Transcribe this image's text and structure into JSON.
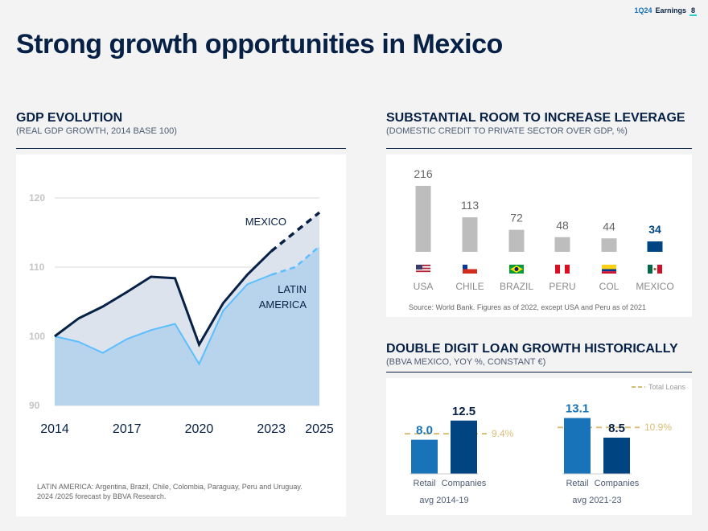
{
  "header": {
    "brand_period": "1Q24",
    "brand_label": "Earnings",
    "page_number": "8"
  },
  "title": "Strong growth opportunities in Mexico",
  "sections": {
    "gdp": {
      "title": "GDP EVOLUTION",
      "subtitle": "(REAL GDP GROWTH, 2014 BASE 100)",
      "footnote_1": "LATIN AMERICA: Argentina, Brazil, Chile, Colombia, Paraguay, Peru and Uruguay.",
      "footnote_2": "2024 /2025 forecast by BBVA Research."
    },
    "leverage": {
      "title": "SUBSTANTIAL ROOM TO INCREASE LEVERAGE",
      "subtitle": "(DOMESTIC CREDIT TO PRIVATE SECTOR OVER GDP, %)",
      "source": "Source: World Bank. Figures as of 2022, except USA and Peru as of 2021"
    },
    "loans": {
      "title": "DOUBLE DIGIT LOAN GROWTH HISTORICALLY",
      "subtitle": "(BBVA MEXICO, YOY %, CONSTANT €)"
    }
  },
  "colors": {
    "navy": "#072146",
    "dark_blue": "#004481",
    "mid_blue": "#1973b8",
    "light_blue": "#5bbeff",
    "area_blue": "#b8d4ed",
    "area_gray": "#dce3ec",
    "gray_bar": "#bdbdbd",
    "gold": "#d8be75",
    "grid": "#d9d9d9"
  },
  "chart_data": [
    {
      "type": "line",
      "id": "gdp",
      "x": [
        2014,
        2015,
        2016,
        2017,
        2018,
        2019,
        2020,
        2021,
        2022,
        2023,
        2024,
        2025
      ],
      "x_tick_labels": [
        "2014",
        "2017",
        "2020",
        "2023",
        "2025"
      ],
      "x_tick_values": [
        2014,
        2017,
        2020,
        2023,
        2025
      ],
      "y_ticks": [
        "90",
        "100",
        "110",
        "120"
      ],
      "ylim": [
        90,
        120
      ],
      "forecast_from": 2023,
      "series": [
        {
          "name": "MEXICO",
          "values": [
            100,
            102.6,
            104.3,
            106.4,
            108.6,
            108.4,
            98.8,
            104.8,
            108.9,
            112.3,
            115.1,
            117.9
          ]
        },
        {
          "name_line1": "LATIN",
          "name_line2": "AMERICA",
          "values": [
            100,
            99.2,
            97.6,
            99.6,
            100.9,
            101.8,
            96.0,
            103.7,
            107.5,
            108.9,
            110.0,
            113.0
          ]
        }
      ],
      "label_mexico": "MEXICO",
      "label_latam_1": "LATIN",
      "label_latam_2": "AMERICA"
    },
    {
      "type": "bar",
      "id": "leverage",
      "categories": [
        "USA",
        "CHILE",
        "BRAZIL",
        "PERU",
        "COL",
        "MEXICO"
      ],
      "values": [
        216,
        113,
        72,
        48,
        44,
        34
      ],
      "value_labels": [
        "216",
        "113",
        "72",
        "48",
        "44",
        "34"
      ],
      "highlight": "MEXICO",
      "flag_icons": [
        "us-flag-icon",
        "chile-flag-icon",
        "brazil-flag-icon",
        "peru-flag-icon",
        "colombia-flag-icon",
        "mexico-flag-icon"
      ]
    },
    {
      "type": "bar",
      "id": "loan_growth",
      "groups": [
        {
          "label": "avg 2014-19",
          "categories": [
            "Retail",
            "Companies"
          ],
          "values": [
            8.0,
            12.5
          ],
          "value_labels": [
            "8.0",
            "12.5"
          ],
          "total_loans": 9.4,
          "total_label": "9.4%"
        },
        {
          "label": "avg 2021-23",
          "categories": [
            "Retail",
            "Companies"
          ],
          "values": [
            13.1,
            8.5
          ],
          "value_labels": [
            "13.1",
            "8.5"
          ],
          "total_loans": 10.9,
          "total_label": "10.9%"
        }
      ],
      "legend": "Total Loans",
      "legend_position": "top-right",
      "ylim": [
        0,
        14
      ]
    }
  ]
}
